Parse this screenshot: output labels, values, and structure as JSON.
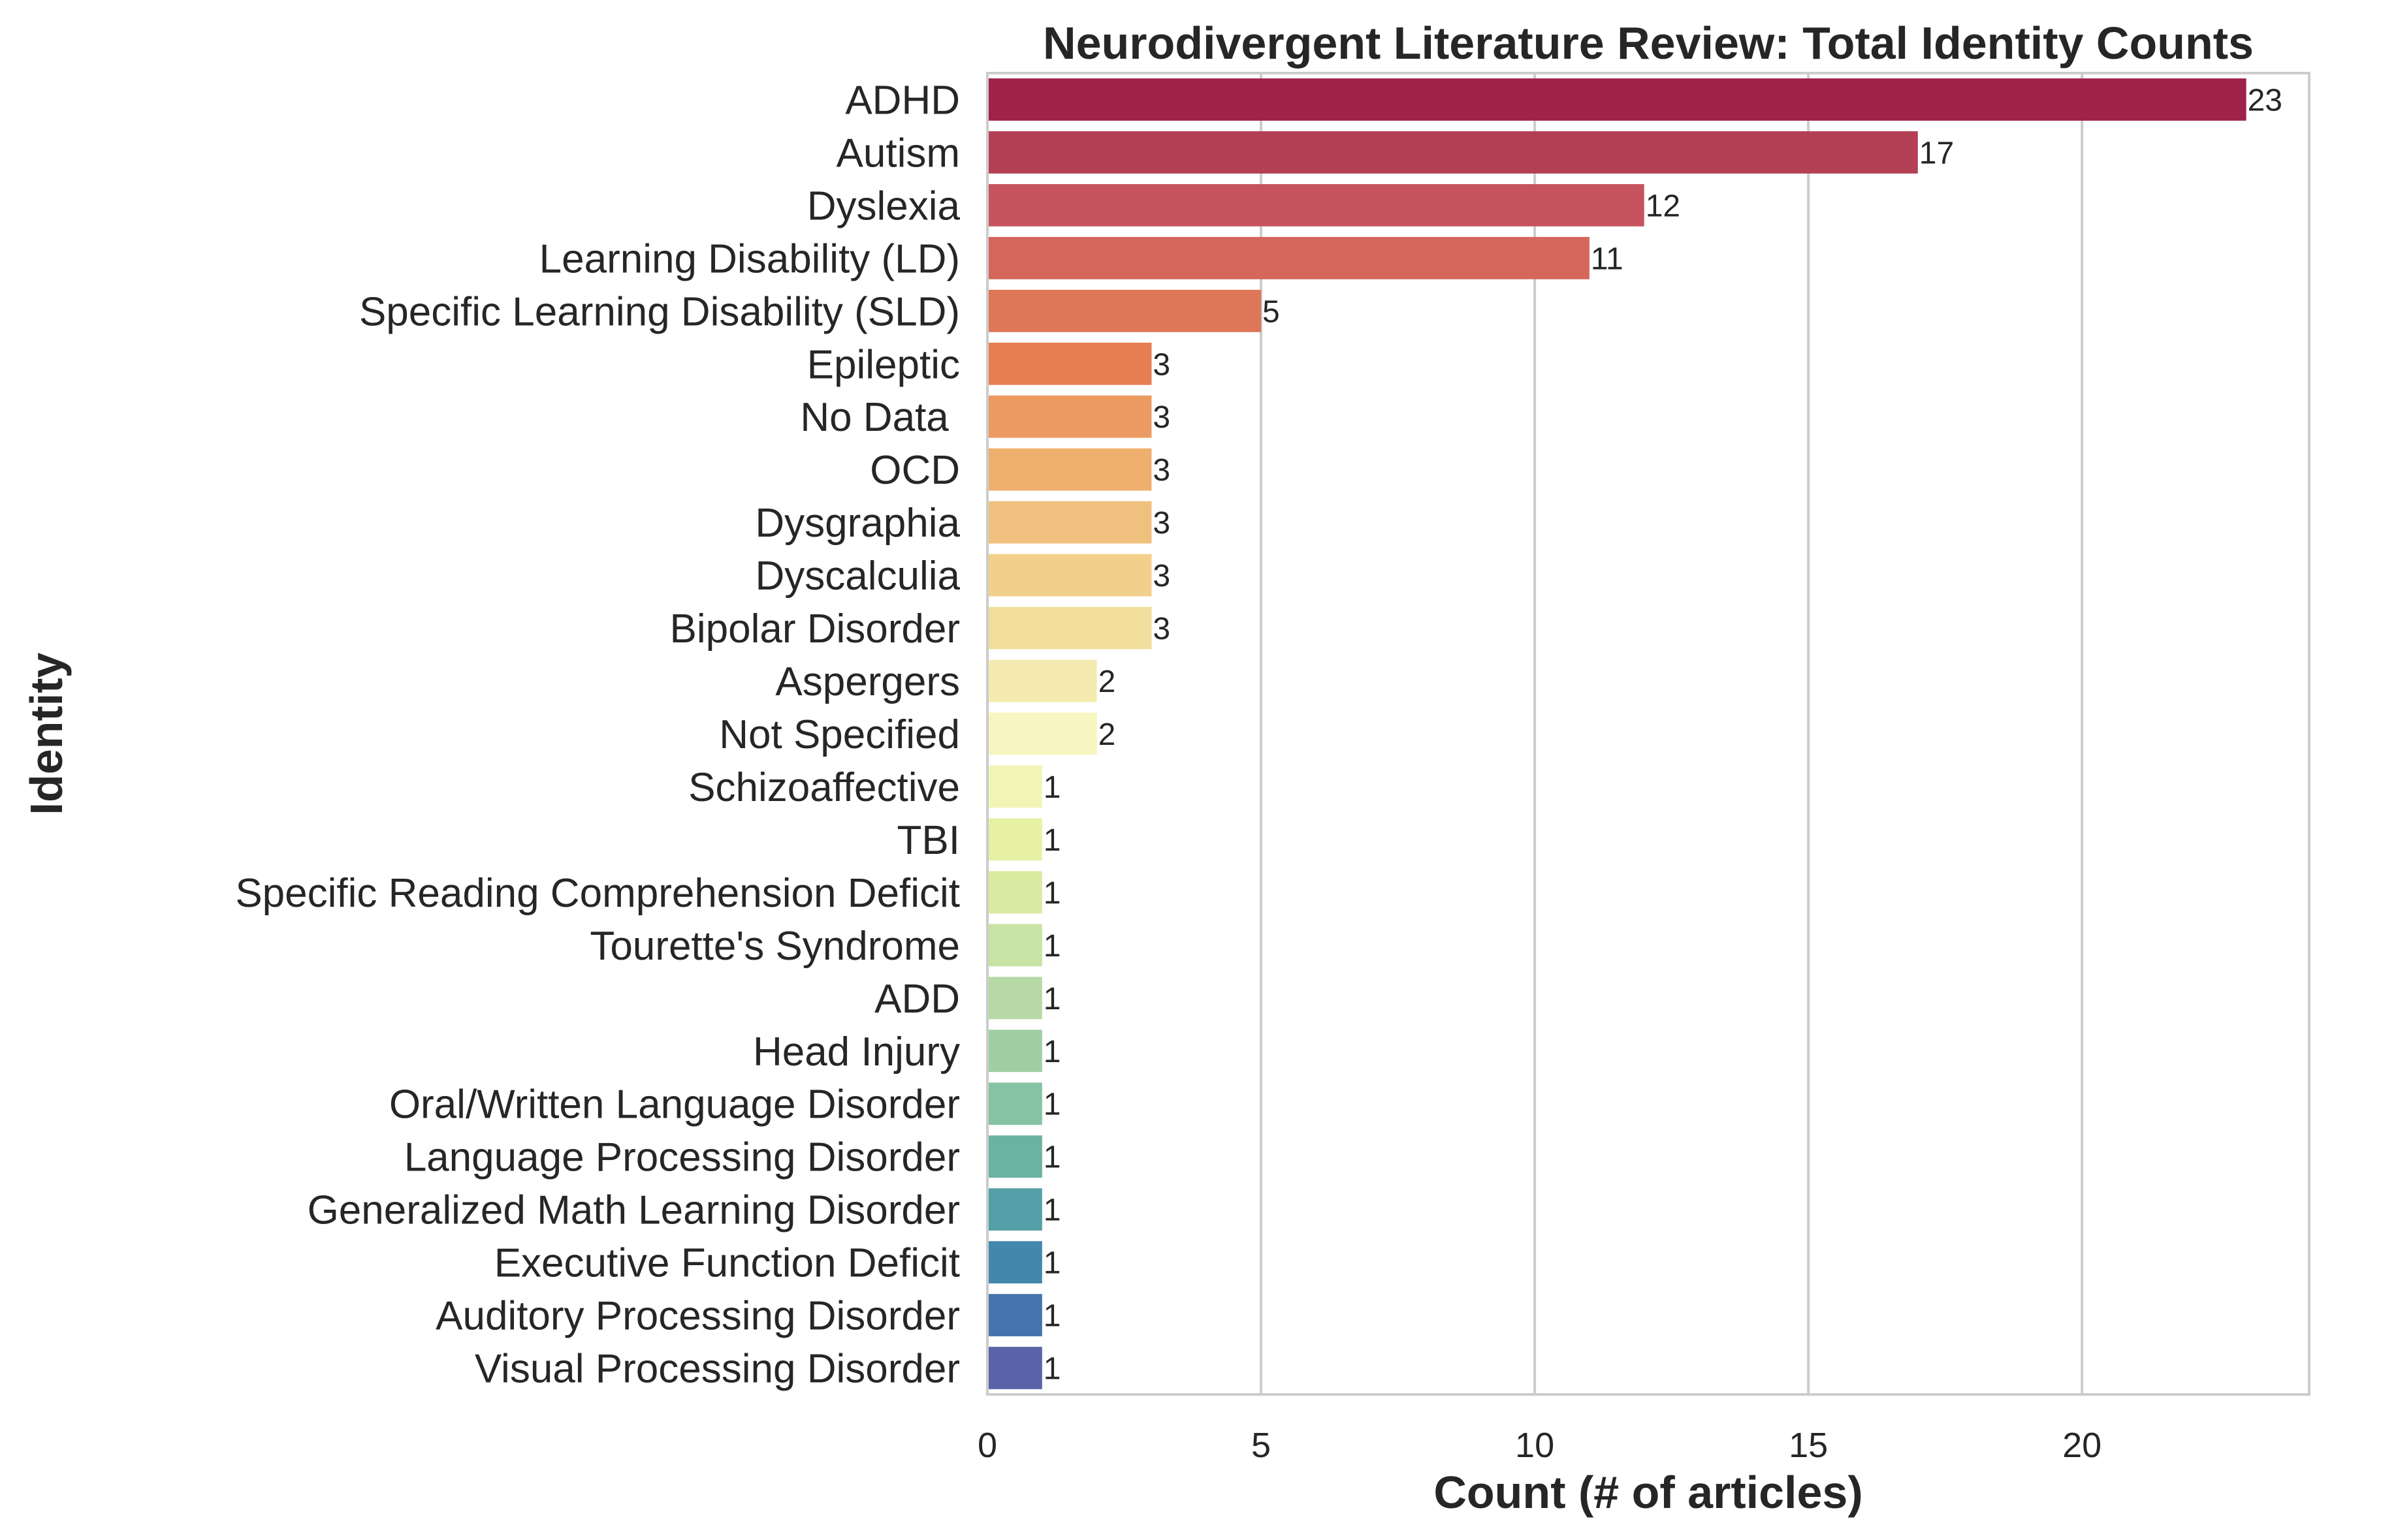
{
  "chart_data": {
    "type": "bar",
    "orientation": "horizontal",
    "title": "Neurodivergent Literature Review: Total Identity Counts",
    "xlabel": "Count (# of articles)",
    "ylabel": "Identity",
    "xlim": [
      0,
      24.15
    ],
    "xticks": [
      0,
      5,
      10,
      15,
      20
    ],
    "grid": "vertical",
    "palette": "Spectral",
    "categories": [
      "ADHD",
      "Autism",
      "Dyslexia",
      "Learning Disability (LD)",
      "Specific Learning Disability (SLD)",
      "Epileptic",
      "No Data ",
      "OCD",
      "Dysgraphia",
      "Dyscalculia",
      "Bipolar Disorder",
      "Aspergers",
      "Not Specified",
      "Schizoaffective",
      "TBI",
      "Specific Reading Comprehension Deficit",
      "Tourette's Syndrome",
      "ADD",
      "Head Injury",
      "Oral/Written Language Disorder",
      "Language Processing Disorder",
      "Generalized Math Learning Disorder",
      "Executive Function Deficit",
      "Auditory Processing Disorder",
      "Visual Processing Disorder"
    ],
    "values": [
      23,
      17,
      12,
      11,
      5,
      3,
      3,
      3,
      3,
      3,
      3,
      2,
      2,
      1,
      1,
      1,
      1,
      1,
      1,
      1,
      1,
      1,
      1,
      1,
      1
    ],
    "colors": [
      "#A0224B",
      "#B33F55",
      "#C6545E",
      "#D5665B",
      "#DE7658",
      "#E67E52",
      "#EB9A62",
      "#EEAF6E",
      "#F0C17E",
      "#F2CF8A",
      "#F2DE9C",
      "#F5EBB0",
      "#F7F6C0",
      "#F1F5B6",
      "#E6F1A5",
      "#D9EBA0",
      "#C9E3A4",
      "#B6D9A6",
      "#A0CEA2",
      "#86C3A2",
      "#6AB3A3",
      "#54A0A8",
      "#4388AC",
      "#4573AD",
      "#5A62A8"
    ]
  }
}
